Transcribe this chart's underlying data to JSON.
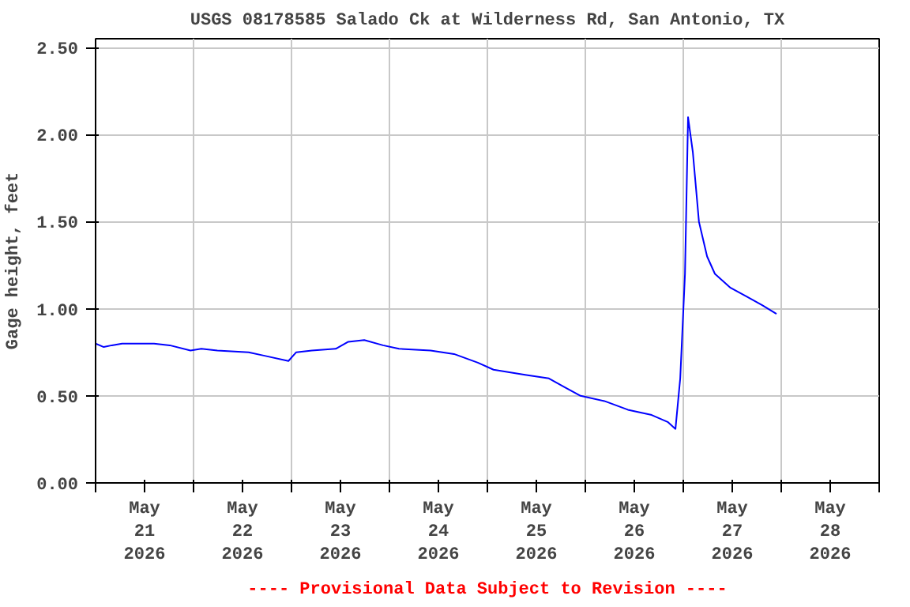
{
  "chart_data": {
    "type": "line",
    "title": "USGS 08178585 Salado Ck at Wilderness Rd, San Antonio, TX",
    "ylabel": "Gage height, feet",
    "annotations": [
      "---- Provisional Data Subject to Revision ----"
    ],
    "x": [
      "2026-05-21T00:00",
      "2026-05-21T02:00",
      "2026-05-21T04:00",
      "2026-05-21T06:30",
      "2026-05-21T14:20",
      "2026-05-21T18:10",
      "2026-05-21T23:15",
      "2026-05-22T01:55",
      "2026-05-22T05:50",
      "2026-05-22T13:30",
      "2026-05-22T17:25",
      "2026-05-22T23:15",
      "2026-05-23T01:10",
      "2026-05-23T05:00",
      "2026-05-23T10:50",
      "2026-05-23T13:55",
      "2026-05-23T17:50",
      "2026-05-23T22:25",
      "2026-05-24T02:20",
      "2026-05-24T10:05",
      "2026-05-24T15:50",
      "2026-05-24T21:40",
      "2026-05-25T01:30",
      "2026-05-25T09:15",
      "2026-05-25T15:05",
      "2026-05-25T18:55",
      "2026-05-25T22:50",
      "2026-05-26T04:40",
      "2026-05-26T10:25",
      "2026-05-26T16:15",
      "2026-05-26T20:10",
      "2026-05-26T22:05",
      "2026-05-26T23:15",
      "2026-05-27T00:25",
      "2026-05-27T01:10",
      "2026-05-27T02:20",
      "2026-05-27T03:50",
      "2026-05-27T05:50",
      "2026-05-27T07:45",
      "2026-05-27T11:35",
      "2026-05-27T15:30",
      "2026-05-27T19:20",
      "2026-05-27T22:50"
    ],
    "series": [
      {
        "color": "#0000ff",
        "values": [
          0.8,
          0.78,
          0.79,
          0.8,
          0.8,
          0.79,
          0.76,
          0.77,
          0.76,
          0.75,
          0.73,
          0.7,
          0.75,
          0.76,
          0.77,
          0.81,
          0.82,
          0.79,
          0.77,
          0.76,
          0.74,
          0.69,
          0.65,
          0.62,
          0.6,
          0.55,
          0.5,
          0.47,
          0.42,
          0.39,
          0.35,
          0.31,
          0.6,
          1.2,
          2.1,
          1.9,
          1.5,
          1.3,
          1.2,
          1.12,
          1.07,
          1.02,
          0.97
        ]
      }
    ],
    "xlim": [
      "2026-05-21T00:00",
      "2026-05-29T00:00"
    ],
    "xticks": [
      {
        "value": "2026-05-21T00:00",
        "label": null
      },
      {
        "value": "2026-05-21T12:00",
        "label": "May\n21\n2026"
      },
      {
        "value": "2026-05-22T00:00",
        "label": null
      },
      {
        "value": "2026-05-22T12:00",
        "label": "May\n22\n2026"
      },
      {
        "value": "2026-05-23T00:00",
        "label": null
      },
      {
        "value": "2026-05-23T12:00",
        "label": "May\n23\n2026"
      },
      {
        "value": "2026-05-24T00:00",
        "label": null
      },
      {
        "value": "2026-05-24T12:00",
        "label": "May\n24\n2026"
      },
      {
        "value": "2026-05-25T00:00",
        "label": null
      },
      {
        "value": "2026-05-25T12:00",
        "label": "May\n25\n2026"
      },
      {
        "value": "2026-05-26T00:00",
        "label": null
      },
      {
        "value": "2026-05-26T12:00",
        "label": "May\n26\n2026"
      },
      {
        "value": "2026-05-27T00:00",
        "label": null
      },
      {
        "value": "2026-05-27T12:00",
        "label": "May\n27\n2026"
      },
      {
        "value": "2026-05-28T00:00",
        "label": null
      },
      {
        "value": "2026-05-28T12:00",
        "label": "May\n28\n2026"
      },
      {
        "value": "2026-05-29T00:00",
        "label": null
      }
    ],
    "ylim": [
      0,
      2.55
    ],
    "yticks": [
      {
        "value": 0,
        "label": "0.00"
      },
      {
        "value": 0.5,
        "label": "0.50"
      },
      {
        "value": 1,
        "label": "1.00"
      },
      {
        "value": 1.5,
        "label": "1.50"
      },
      {
        "value": 2,
        "label": "2.00"
      },
      {
        "value": 2.5,
        "label": "2.50"
      }
    ],
    "grid": true,
    "marker": "none",
    "line_style": "solid"
  }
}
